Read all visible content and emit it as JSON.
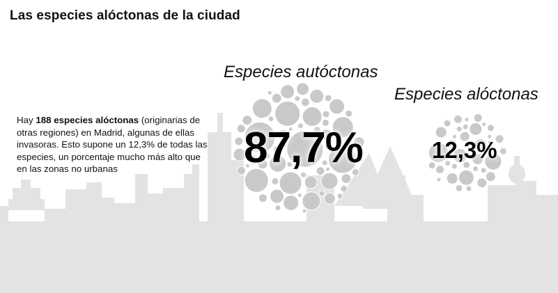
{
  "title": "Las especies alóctonas de la ciudad",
  "description": {
    "before": "Hay ",
    "bold": "188 especies alóctonas",
    "after": " (originarias de otras regiones) en Madrid, algunas de ellas invasoras. Esto supone un 12,3% de todas las especies, un porcentaje mucho más alto que en las zonas no urbanas"
  },
  "groups": [
    {
      "label": "Especies autóctonas",
      "percent_text": "87,7%",
      "share": 0.877
    },
    {
      "label": "Especies alóctonas",
      "percent_text": "12,3%",
      "share": 0.123
    }
  ],
  "colors": {
    "skyline": "#e3e3e3",
    "bubble": "#c9c9c9",
    "bubble_stroke": "#ffffff",
    "text": "#111111"
  }
}
